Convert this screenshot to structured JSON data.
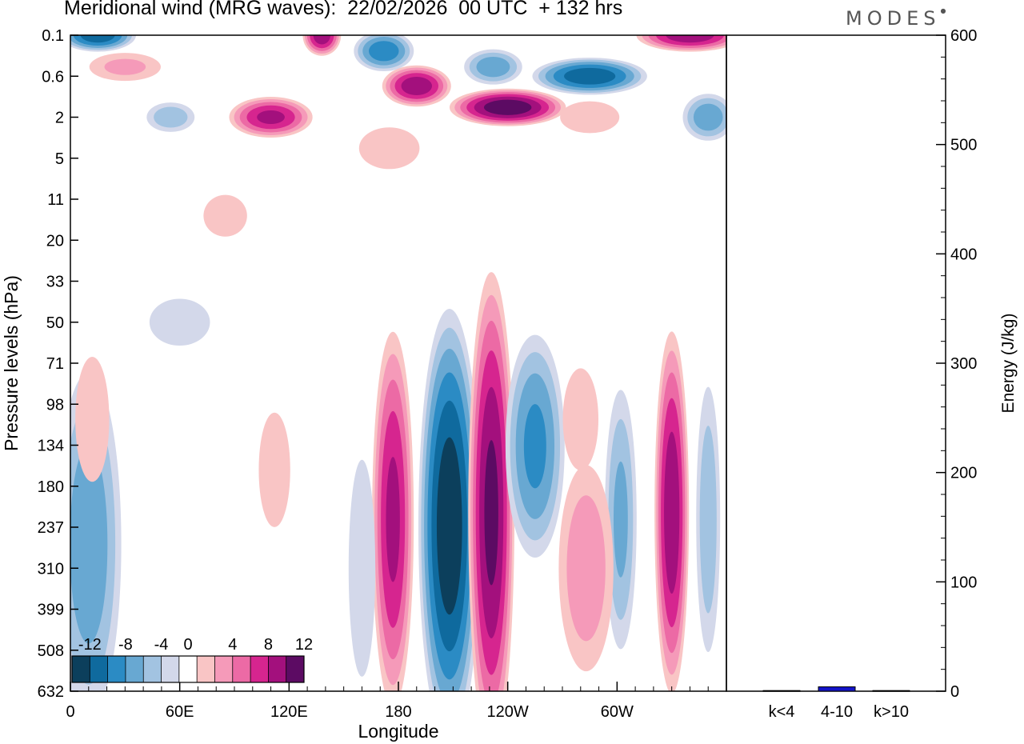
{
  "title": "Meridional wind (MRG waves):  22/02/2026  00 UTC  + 132 hrs",
  "logo": "MODES",
  "colors": {
    "neg": [
      "#0c3f5c",
      "#0f6a9e",
      "#2b8bc4",
      "#68a8d2",
      "#a2c3e1",
      "#d3d8ea"
    ],
    "zero": "#ffffff",
    "pos": [
      "#f9c5c5",
      "#f59ab9",
      "#ec6aa5",
      "#d6258f",
      "#a3107d",
      "#5c0b63"
    ],
    "energy_bar": "#1414c8"
  },
  "chart_data": [
    {
      "type": "heatmap",
      "title": "Meridional wind (MRG waves)",
      "xlabel": "Longitude",
      "ylabel": "Pressure levels (hPa)",
      "x_ticks": [
        "0",
        "60E",
        "120E",
        "180",
        "120W",
        "60W"
      ],
      "x_tick_lon": [
        0,
        60,
        120,
        180,
        240,
        300
      ],
      "xlim": [
        0,
        360
      ],
      "y_ticks": [
        "0.1",
        "0.6",
        "2",
        "5",
        "11",
        "20",
        "33",
        "50",
        "71",
        "98",
        "134",
        "180",
        "237",
        "310",
        "399",
        "508",
        "632"
      ],
      "colorbar": {
        "levels": [
          -14,
          -12,
          -10,
          -8,
          -6,
          -4,
          -2,
          2,
          4,
          6,
          8,
          10,
          12,
          14
        ],
        "labels": [
          "-12",
          "-8",
          "-4",
          "0",
          "4",
          "8",
          "12"
        ],
        "label_values": [
          -12,
          -8,
          -4,
          0,
          4,
          8,
          12
        ]
      },
      "features": [
        {
          "lon": 208,
          "level": 235,
          "lon_half_width": 16,
          "level_half_span": 5.2,
          "value": -14
        },
        {
          "lon": 231,
          "level": 215,
          "lon_half_width": 12,
          "level_half_span": 5.8,
          "value": 13
        },
        {
          "lon": 177,
          "level": 225,
          "lon_half_width": 11,
          "level_half_span": 4.6,
          "value": 11
        },
        {
          "lon": 330,
          "level": 215,
          "lon_half_width": 9,
          "level_half_span": 4.4,
          "value": 12
        },
        {
          "lon": 10,
          "level": 265,
          "lon_half_width": 18,
          "level_half_span": 4.4,
          "value": -8
        },
        {
          "lon": 255,
          "level": 135,
          "lon_half_width": 16,
          "level_half_span": 2.8,
          "value": -9
        },
        {
          "lon": 302,
          "level": 225,
          "lon_half_width": 9,
          "level_half_span": 3.4,
          "value": -7
        },
        {
          "lon": 350,
          "level": 225,
          "lon_half_width": 7,
          "level_half_span": 3.6,
          "value": -6
        },
        {
          "lon": 283,
          "level": 310,
          "lon_half_width": 16,
          "level_half_span": 2.8,
          "value": 6
        },
        {
          "lon": 160,
          "level": 310,
          "lon_half_width": 9,
          "level_half_span": 3.4,
          "value": -4
        },
        {
          "lon": 280,
          "level": 110,
          "lon_half_width": 12,
          "level_half_span": 1.6,
          "value": 4
        },
        {
          "lon": 112,
          "level": 160,
          "lon_half_width": 13,
          "level_half_span": 2.2,
          "value": 3
        },
        {
          "lon": 12,
          "level": 110,
          "lon_half_width": 14,
          "level_half_span": 2.4,
          "value": 3
        },
        {
          "lon": 60,
          "level": 50,
          "lon_half_width": 25,
          "level_half_span": 0.9,
          "value": -3
        },
        {
          "lon": 85,
          "level": 14,
          "lon_half_width": 18,
          "level_half_span": 0.8,
          "value": 3
        },
        {
          "lon": 110,
          "level": 2,
          "lon_half_width": 22,
          "level_half_span": 0.5,
          "value": 11
        },
        {
          "lon": 138,
          "level": 0.1,
          "lon_half_width": 10,
          "level_half_span": 0.5,
          "value": 12
        },
        {
          "lon": 15,
          "level": 0.1,
          "lon_half_width": 20,
          "level_half_span": 0.4,
          "value": -12
        },
        {
          "lon": 172,
          "level": 0.2,
          "lon_half_width": 16,
          "level_half_span": 0.5,
          "value": -10
        },
        {
          "lon": 190,
          "level": 0.8,
          "lon_half_width": 18,
          "level_half_span": 0.5,
          "value": 12
        },
        {
          "lon": 240,
          "level": 1.5,
          "lon_half_width": 30,
          "level_half_span": 0.45,
          "value": 14
        },
        {
          "lon": 232,
          "level": 0.4,
          "lon_half_width": 16,
          "level_half_span": 0.45,
          "value": -8
        },
        {
          "lon": 285,
          "level": 0.6,
          "lon_half_width": 30,
          "level_half_span": 0.45,
          "value": -12
        },
        {
          "lon": 340,
          "level": 0.1,
          "lon_half_width": 28,
          "level_half_span": 0.4,
          "value": 12
        },
        {
          "lon": 350,
          "level": 2,
          "lon_half_width": 14,
          "level_half_span": 0.6,
          "value": -8
        },
        {
          "lon": 55,
          "level": 2,
          "lon_half_width": 14,
          "level_half_span": 0.4,
          "value": -6
        },
        {
          "lon": 30,
          "level": 0.4,
          "lon_half_width": 22,
          "level_half_span": 0.4,
          "value": 5
        },
        {
          "lon": 285,
          "level": 2,
          "lon_half_width": 20,
          "level_half_span": 0.5,
          "value": 4
        },
        {
          "lon": 175,
          "level": 4,
          "lon_half_width": 25,
          "level_half_span": 0.8,
          "value": 3
        }
      ]
    },
    {
      "type": "bar",
      "ylabel": "Energy (J/kg)",
      "categories": [
        "k<4",
        "4-10",
        "k>10"
      ],
      "values": [
        0.6,
        4,
        0.6
      ],
      "ylim": [
        0,
        600
      ],
      "y_ticks": [
        "0",
        "100",
        "200",
        "300",
        "400",
        "500",
        "600"
      ],
      "y_tick_values": [
        0,
        100,
        200,
        300,
        400,
        500,
        600
      ]
    }
  ]
}
